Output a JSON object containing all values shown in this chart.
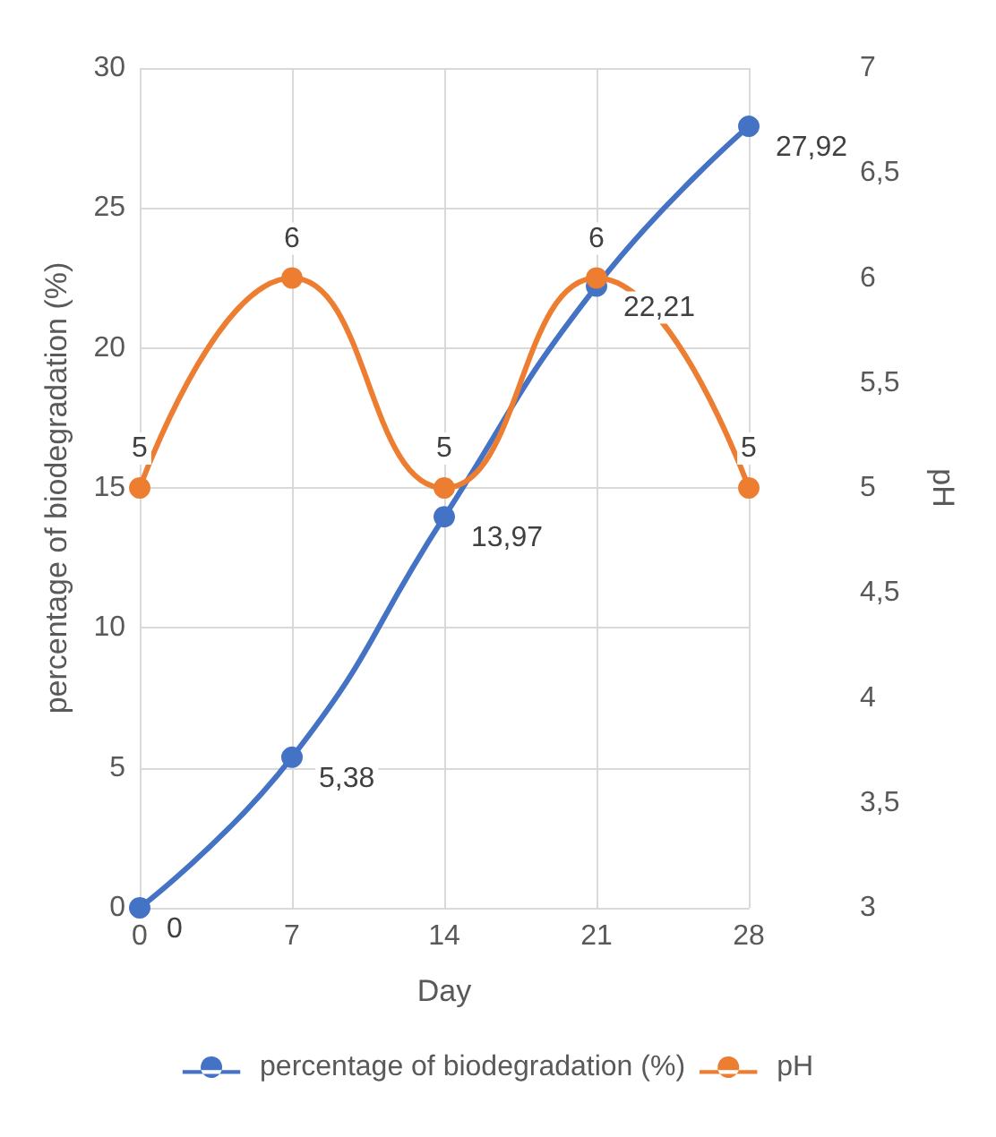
{
  "chart_data": {
    "type": "line",
    "xlabel": "Day",
    "ylabel": "percentage of biodegradation (%)",
    "y2label": "pH",
    "categories": [
      "0",
      "7",
      "14",
      "21",
      "28"
    ],
    "series": [
      {
        "name": "percentage of biodegradation (%)",
        "color": "#4472c4",
        "values": [
          0,
          5.38,
          13.97,
          22.21,
          27.92
        ],
        "value_labels": [
          "0",
          "5,38",
          "13,97",
          "22,21",
          "27,92"
        ]
      },
      {
        "name": "pH",
        "color": "#ed7d31",
        "axis": "y2",
        "values": [
          5,
          6,
          5,
          6,
          5
        ],
        "value_labels": [
          "5",
          "6",
          "5",
          "6",
          "5"
        ]
      }
    ],
    "ylim": [
      0,
      30
    ],
    "yticks": [
      0,
      5,
      10,
      15,
      20,
      25,
      30
    ],
    "y2lim": [
      3,
      7
    ],
    "y2ticks": [
      3,
      {
        "value": 3.5,
        "label": "3,5"
      },
      4,
      {
        "value": 4.5,
        "label": "4,5"
      },
      5,
      {
        "value": 5.5,
        "label": "5,5"
      },
      6,
      {
        "value": 6.5,
        "label": "6,5"
      },
      7
    ],
    "grid": true,
    "legend": "bottom",
    "marker": "circle",
    "line_style": "solid"
  }
}
